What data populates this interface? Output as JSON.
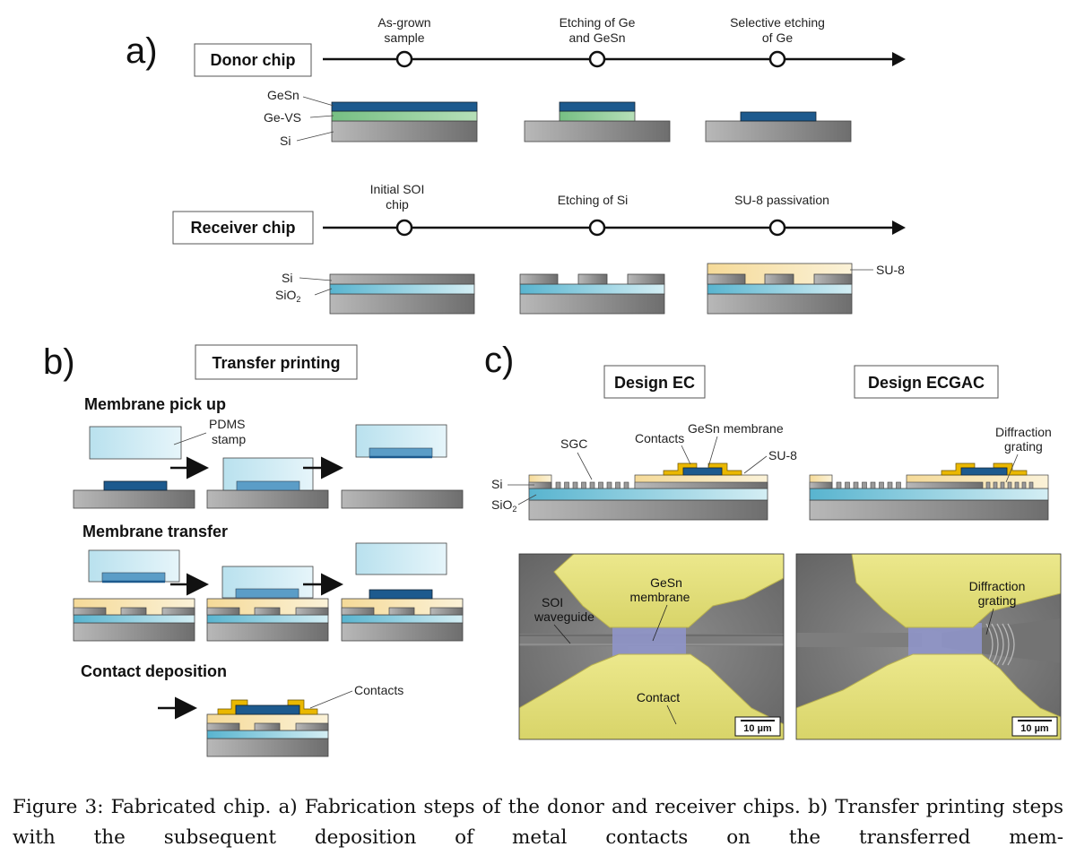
{
  "panels": {
    "a": "a)",
    "b": "b)",
    "c": "c)"
  },
  "panel_a": {
    "donor": {
      "title": "Donor chip",
      "steps": [
        [
          "As-grown",
          "sample"
        ],
        [
          "Etching of Ge",
          "and GeSn"
        ],
        [
          "Selective etching",
          "of Ge"
        ]
      ],
      "layers": [
        "GeSn",
        "Ge-VS",
        "Si"
      ]
    },
    "receiver": {
      "title": "Receiver chip",
      "steps": [
        [
          "Initial SOI",
          "chip"
        ],
        [
          "Etching of Si"
        ],
        [
          "SU-8 passivation"
        ]
      ],
      "layers": [
        "Si",
        "SiO",
        "2"
      ],
      "su8": "SU-8"
    }
  },
  "panel_b": {
    "title": "Transfer printing",
    "steps": [
      "Membrane pick up",
      "Membrane transfer",
      "Contact deposition"
    ],
    "stamp": [
      "PDMS",
      "stamp"
    ],
    "contacts": "Contacts"
  },
  "panel_c": {
    "designs": [
      "Design EC",
      "Design ECGAC"
    ],
    "ec_labels": {
      "gesn": "GeSn membrane",
      "contacts": "Contacts",
      "sgc": "SGC",
      "su8": "SU-8",
      "si": "Si",
      "sio2": "SiO",
      "sub2": "2"
    },
    "ecgac_labels": {
      "grating": [
        "Diffraction",
        "grating"
      ]
    },
    "sem_left": {
      "waveguide": [
        "SOI",
        "waveguide"
      ],
      "membrane": [
        "GeSn",
        "membrane"
      ],
      "contact": "Contact",
      "scale": "10 µm"
    },
    "sem_right": {
      "grating": [
        "Diffraction",
        "grating"
      ],
      "scale": "10 µm"
    }
  },
  "caption": "Figure 3: Fabricated chip. a) Fabrication steps of the donor and receiver chips. b) Transfer printing steps with the subsequent deposition of metal contacts on the transferred mem-",
  "colors": {
    "gesn": "#1d5a8e",
    "gevs": "#8fcb96",
    "si": "#8e8e8e",
    "sio2": "#7cc4d8",
    "su8": "#f6e2ae",
    "pdms": "#cdeaf3",
    "contact": "#eab800"
  }
}
